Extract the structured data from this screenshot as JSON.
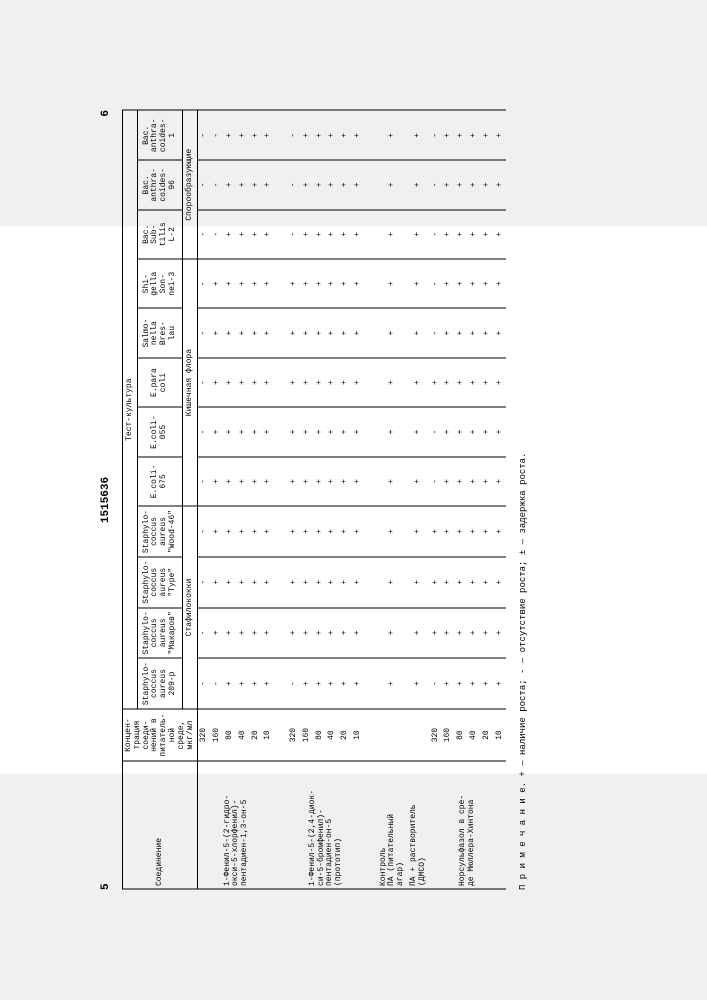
{
  "page_left": "5",
  "doc_number": "1515636",
  "page_right": "6",
  "headers": {
    "compound": "Соединение",
    "concentration": "Концен-\nтрация\nсоеди-\nнений в\nпитатель-\nной среде,\nмкг/мл",
    "test_culture": "Тест-культура",
    "cultures": [
      "Staphylo-\ncoccus\naureus\n209-p",
      "Staphylo-\ncoccus\naureus\n\"Макаров\"",
      "Staphylo-\ncoccus\naureus\n\"Type\"",
      "Staphylo-\ncoccus\naureus\n\"Wood-46\"",
      "E.coli-\n675",
      "E.coli-\n055",
      "E.para\ncoli",
      "Salmo-\nnella\nBres-\nlau",
      "Shi-\ngella\nSon-\nnei-3",
      "Bac.\nSub-\ntilis\nL-2",
      "Bac.\nanthra-\ncoides-\n96",
      "Bac.\nanthra-\ncoides-\n1"
    ],
    "group1": "Стафилококки",
    "group2": "Кишечная флора",
    "group3": "Спорообразующие"
  },
  "concentrations": [
    "320",
    "160",
    "80",
    "40",
    "20",
    "10"
  ],
  "compounds": [
    {
      "name": "1-Фенил-5-(2-гидро-\nокси-5-хлорфенил)-\nпентадиен-1,3-он-5",
      "rows": [
        [
          "-",
          "-",
          "-",
          "-",
          "-",
          "-",
          "-",
          "-",
          "-",
          "-",
          "-",
          "-"
        ],
        [
          "-",
          "+",
          "+",
          "+",
          "+",
          "+",
          "+",
          "+",
          "+",
          "-",
          "-",
          "-"
        ],
        [
          "+",
          "+",
          "+",
          "+",
          "+",
          "+",
          "+",
          "+",
          "+",
          "+",
          "+",
          "+"
        ],
        [
          "+",
          "+",
          "+",
          "+",
          "+",
          "+",
          "+",
          "+",
          "+",
          "+",
          "+",
          "+"
        ],
        [
          "+",
          "+",
          "+",
          "+",
          "+",
          "+",
          "+",
          "+",
          "+",
          "+",
          "+",
          "+"
        ],
        [
          "+",
          "+",
          "+",
          "+",
          "+",
          "+",
          "+",
          "+",
          "+",
          "+",
          "+",
          "+"
        ]
      ]
    },
    {
      "name": "1-Фенил-5-(2,4-диок-\nси-5-бромфенил)-\nпентадиен-он-5\n(прототип)",
      "rows": [
        [
          "-",
          "+",
          "+",
          "+",
          "+",
          "+",
          "+",
          "+",
          "+",
          "-",
          "-",
          "-"
        ],
        [
          "+",
          "+",
          "+",
          "+",
          "+",
          "+",
          "+",
          "+",
          "+",
          "+",
          "+",
          "+"
        ],
        [
          "+",
          "+",
          "+",
          "+",
          "+",
          "+",
          "+",
          "+",
          "+",
          "+",
          "+",
          "+"
        ],
        [
          "+",
          "+",
          "+",
          "+",
          "+",
          "+",
          "+",
          "+",
          "+",
          "+",
          "+",
          "+"
        ],
        [
          "+",
          "+",
          "+",
          "+",
          "+",
          "+",
          "+",
          "+",
          "+",
          "+",
          "+",
          "+"
        ],
        [
          "+",
          "+",
          "+",
          "+",
          "+",
          "+",
          "+",
          "+",
          "+",
          "+",
          "+",
          "+"
        ]
      ]
    }
  ],
  "controls": [
    {
      "name": "Контроль\nПА (питательный\nагар)",
      "conc": "",
      "row": [
        "+",
        "+",
        "+",
        "+",
        "+",
        "+",
        "+",
        "+",
        "+",
        "+",
        "+",
        "+"
      ]
    },
    {
      "name": "ПА + растворитель\n(ДМСО)",
      "conc": "",
      "row": [
        "+",
        "+",
        "+",
        "+",
        "+",
        "+",
        "+",
        "+",
        "+",
        "+",
        "+",
        "+"
      ]
    }
  ],
  "norsulfazol": {
    "name": "Норсульфазол в сре-\nде Мюллера-Хинтона",
    "rows": [
      [
        "-",
        "+",
        "+",
        "+",
        "-",
        "-",
        "+",
        "-",
        "-",
        "-",
        "-",
        "-"
      ],
      [
        "+",
        "+",
        "+",
        "+",
        "+",
        "+",
        "+",
        "+",
        "+",
        "+",
        "+",
        "+"
      ],
      [
        "+",
        "+",
        "+",
        "+",
        "+",
        "+",
        "+",
        "+",
        "+",
        "+",
        "+",
        "+"
      ],
      [
        "+",
        "+",
        "+",
        "+",
        "+",
        "+",
        "+",
        "+",
        "+",
        "+",
        "+",
        "+"
      ],
      [
        "+",
        "+",
        "+",
        "+",
        "+",
        "+",
        "+",
        "+",
        "+",
        "+",
        "+",
        "+"
      ],
      [
        "+",
        "+",
        "+",
        "+",
        "+",
        "+",
        "+",
        "+",
        "+",
        "+",
        "+",
        "+"
      ]
    ]
  },
  "footnote": "П р и м е ч а н и е. + — наличие роста; - — отсутствие роста; ± — задержка роста."
}
